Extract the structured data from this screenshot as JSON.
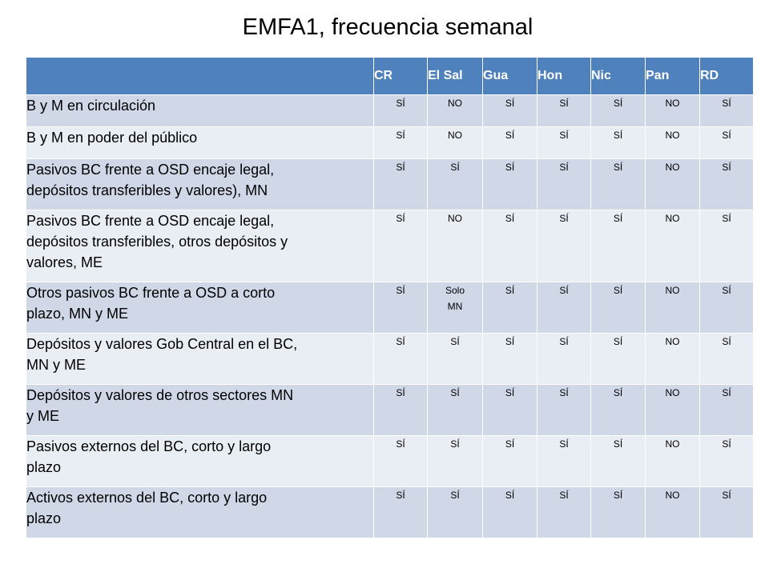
{
  "title": "EMFA1, frecuencia semanal",
  "columns": [
    "CR",
    "El Sal",
    "Gua",
    "Hon",
    "Nic",
    "Pan",
    "RD"
  ],
  "rows": [
    {
      "label_lines": [
        "B y M en circulación"
      ],
      "values": [
        "SÍ",
        "NO",
        "SÍ",
        "SÍ",
        "SÍ",
        "NO",
        "SÍ"
      ]
    },
    {
      "label_lines": [
        "B y M en poder del público"
      ],
      "values": [
        "SÍ",
        "NO",
        "SÍ",
        "SÍ",
        "SÍ",
        "NO",
        "SÍ"
      ]
    },
    {
      "label_lines": [
        "Pasivos BC frente a OSD encaje legal,",
        "depósitos transferibles y valores), MN"
      ],
      "values": [
        "SÍ",
        "SÍ",
        "SÍ",
        "SÍ",
        "SÍ",
        "NO",
        "SÍ"
      ]
    },
    {
      "label_lines": [
        "Pasivos BC frente a OSD encaje legal,",
        "depósitos transferibles, otros depósitos y",
        "valores, ME"
      ],
      "values": [
        "SÍ",
        "NO",
        "SÍ",
        "SÍ",
        "SÍ",
        "NO",
        "SÍ"
      ]
    },
    {
      "label_lines": [
        "Otros pasivos BC frente a OSD a corto",
        "plazo, MN y ME"
      ],
      "values": [
        "SÍ",
        "Solo MN",
        "SÍ",
        "SÍ",
        "SÍ",
        "NO",
        "SÍ"
      ]
    },
    {
      "label_lines": [
        "Depósitos y valores Gob Central en el BC,",
        "MN y ME"
      ],
      "values": [
        "SÍ",
        "SÍ",
        "SÍ",
        "SÍ",
        "SÍ",
        "NO",
        "SÍ"
      ]
    },
    {
      "label_lines": [
        "Depósitos y valores de otros sectores MN",
        "y ME"
      ],
      "values": [
        "SÍ",
        "SÍ",
        "SÍ",
        "SÍ",
        "SÍ",
        "NO",
        "SÍ"
      ]
    },
    {
      "label_lines": [
        "Pasivos externos del BC, corto y largo",
        "plazo"
      ],
      "values": [
        "SÍ",
        "SÍ",
        "SÍ",
        "SÍ",
        "SÍ",
        "NO",
        "SÍ"
      ]
    },
    {
      "label_lines": [
        "Activos externos del BC, corto y largo",
        "plazo"
      ],
      "values": [
        "SÍ",
        "SÍ",
        "SÍ",
        "SÍ",
        "SÍ",
        "NO",
        "SÍ"
      ]
    }
  ],
  "colors": {
    "header": "#4f81bd",
    "row_dark": "#d0d8e8",
    "row_light": "#e9edf4"
  }
}
